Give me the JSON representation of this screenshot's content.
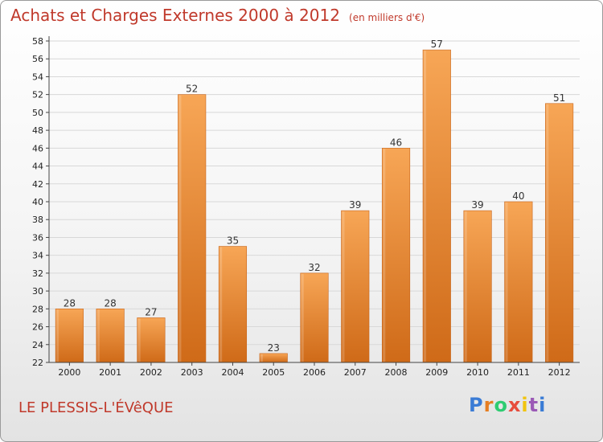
{
  "title": "Achats et Charges Externes 2000 à 2012",
  "subtitle": "(en milliers d'€)",
  "commune": "LE PLESSIS-L'ÉVêQUE",
  "logo": {
    "letters": [
      "P",
      "r",
      "o",
      "x",
      "i",
      "t",
      "i"
    ],
    "colors": [
      "#3a7bd5",
      "#e67e22",
      "#2ecc71",
      "#e74c3c",
      "#f1c40f",
      "#9b59b6",
      "#3a7bd5"
    ]
  },
  "colors": {
    "bar_light": "#f7a656",
    "bar_dark": "#cf6a18",
    "title": "#c0392b",
    "grid": "#d8d8d8",
    "axis_text": "#222222"
  },
  "chart_data": {
    "type": "bar",
    "categories": [
      "2000",
      "2001",
      "2002",
      "2003",
      "2004",
      "2005",
      "2006",
      "2007",
      "2008",
      "2009",
      "2010",
      "2011",
      "2012"
    ],
    "values": [
      28,
      28,
      27,
      52,
      35,
      23,
      32,
      39,
      46,
      57,
      39,
      40,
      51
    ],
    "data_labels": [
      "28",
      "28",
      "27",
      "52",
      "35",
      "23",
      "32",
      "39",
      "46",
      "57",
      "39",
      "40",
      "51"
    ],
    "title": "Achats et Charges Externes 2000 à 2012",
    "subtitle": "(en milliers d'€)",
    "xlabel": "",
    "ylabel": "",
    "ylim": [
      22,
      58
    ],
    "yticks": [
      "22",
      "24",
      "26",
      "28",
      "30",
      "32",
      "34",
      "36",
      "38",
      "40",
      "42",
      "44",
      "46",
      "48",
      "50",
      "52",
      "54",
      "56",
      "58"
    ],
    "grid": true
  }
}
